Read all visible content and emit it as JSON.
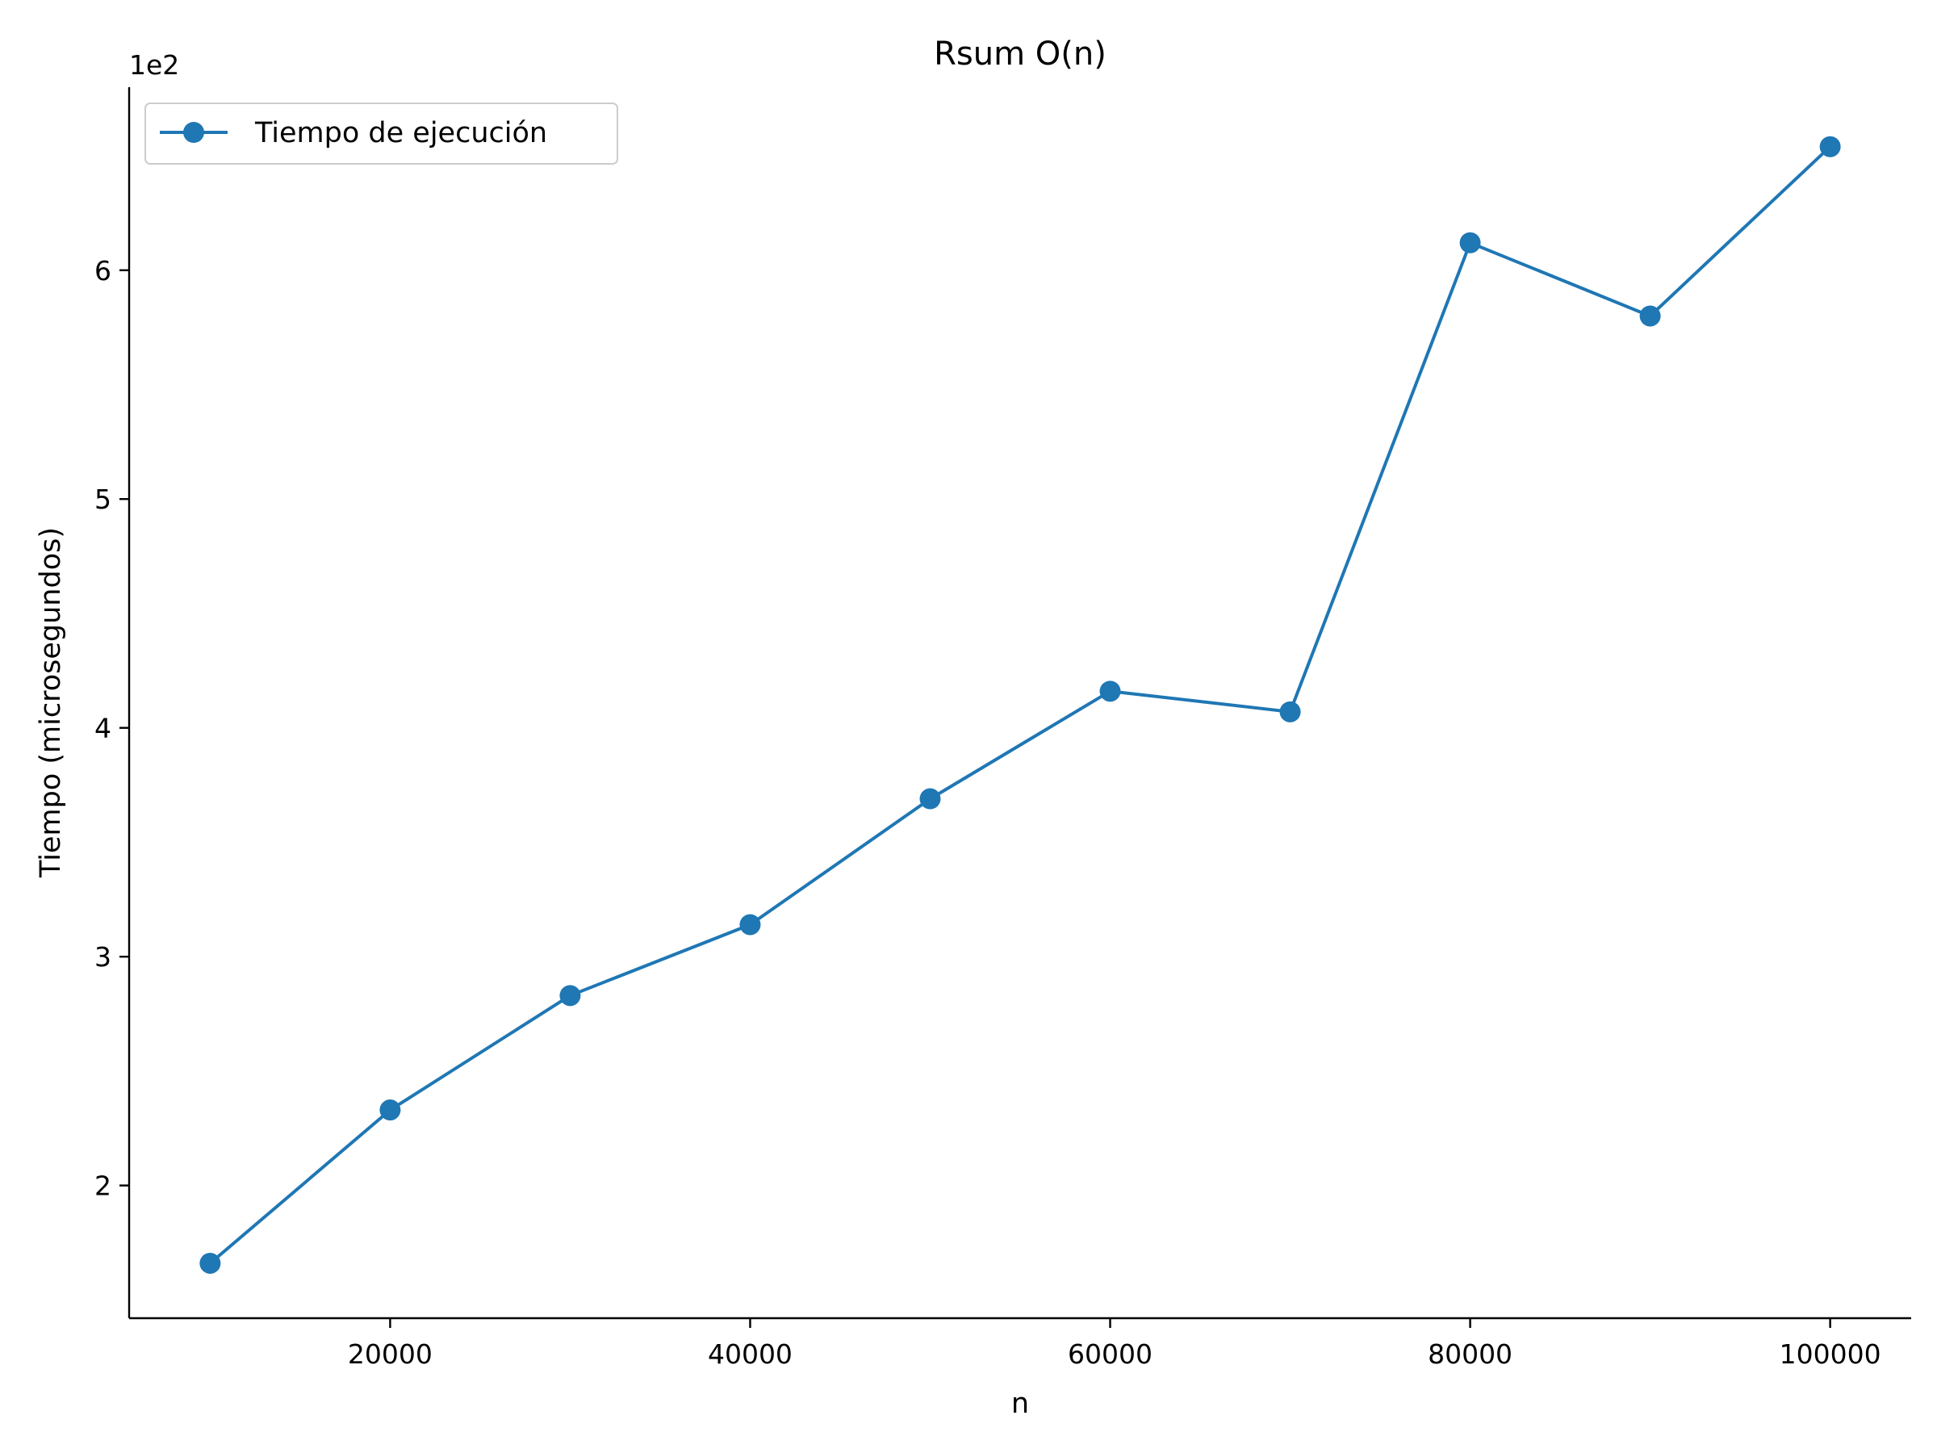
{
  "chart_data": {
    "type": "line",
    "title": "Rsum O(n)",
    "xlabel": "n",
    "ylabel": "Tiempo (microsegundos)",
    "y_offset_label": "1e2",
    "x_ticks": [
      20000,
      40000,
      60000,
      80000,
      100000
    ],
    "y_ticks": [
      2,
      3,
      4,
      5,
      6
    ],
    "xlim": [
      5500,
      104500
    ],
    "ylim": [
      1.42,
      6.8
    ],
    "grid": false,
    "legend_position": "top-left",
    "series": [
      {
        "name": "Tiempo de ejecución",
        "color": "#1f77b4",
        "marker": "circle",
        "x": [
          10000,
          20000,
          30000,
          40000,
          50000,
          60000,
          70000,
          80000,
          90000,
          100000
        ],
        "y": [
          1.66,
          2.33,
          2.83,
          3.14,
          3.69,
          4.16,
          4.07,
          6.12,
          5.8,
          6.54
        ]
      }
    ]
  }
}
